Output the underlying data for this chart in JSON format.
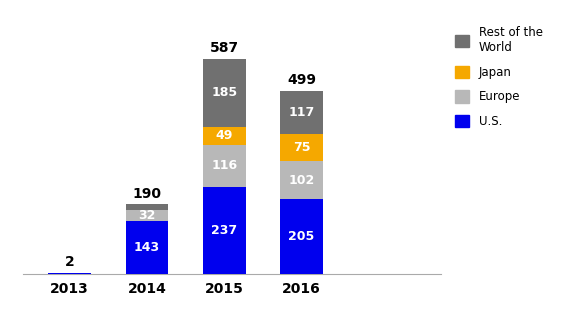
{
  "years": [
    "2013",
    "2014",
    "2015",
    "2016"
  ],
  "us": [
    2,
    143,
    237,
    205
  ],
  "europe": [
    0,
    32,
    116,
    102
  ],
  "japan": [
    0,
    0,
    49,
    75
  ],
  "rotw": [
    0,
    15,
    185,
    117
  ],
  "totals": [
    2,
    190,
    587,
    499
  ],
  "colors": {
    "us": "#0000ee",
    "europe": "#b8b8b8",
    "japan": "#f5a800",
    "rotw": "#707070"
  },
  "bar_width": 0.55,
  "figsize": [
    5.8,
    3.11
  ],
  "dpi": 100,
  "total_fontsize": 10,
  "label_fontsize": 9,
  "xtick_fontsize": 10,
  "ylim": [
    0,
    680
  ]
}
